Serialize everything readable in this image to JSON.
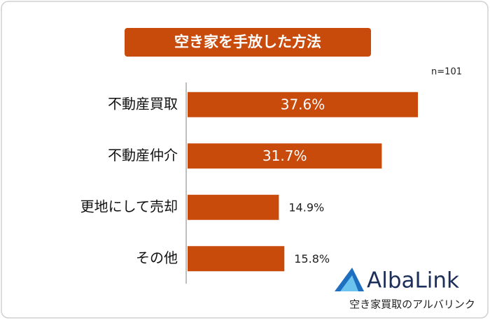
{
  "chart_data": {
    "type": "bar",
    "orientation": "horizontal",
    "title": "空き家を手放した方法",
    "note": "n=101",
    "categories": [
      "不動産買取",
      "不動産仲介",
      "更地にして売却",
      "その他"
    ],
    "values": [
      37.6,
      31.7,
      14.9,
      15.8
    ],
    "value_labels": [
      "37.6%",
      "31.7%",
      "14.9%",
      "15.8%"
    ],
    "color": "#c84b0c",
    "xlim": [
      0,
      40
    ],
    "brand": "AlbaLink",
    "brand_tagline": "空き家買取のアルバリンク"
  }
}
